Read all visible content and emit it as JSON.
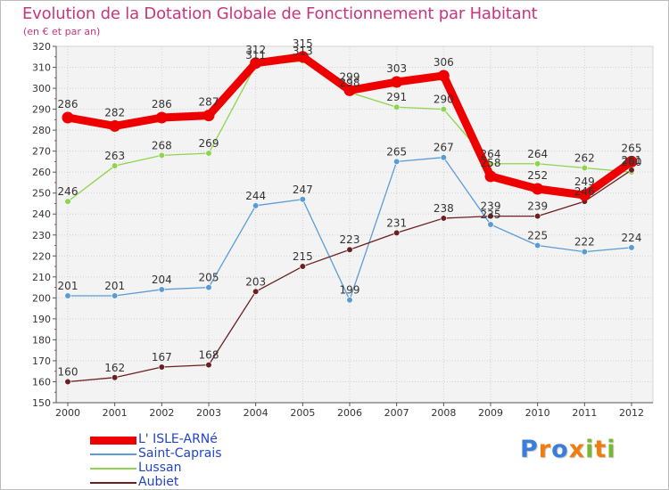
{
  "title": "Evolution de la Dotation Globale de Fonctionnement par Habitant",
  "subtitle": "(en € et par an)",
  "chart_data": {
    "type": "line",
    "title": "Evolution de la Dotation Globale de Fonctionnement par Habitant",
    "subtitle": "(en € et par an)",
    "xlabel": "",
    "ylabel": "",
    "categories": [
      "2000",
      "2001",
      "2002",
      "2003",
      "2004",
      "2005",
      "2006",
      "2007",
      "2008",
      "2009",
      "2010",
      "2011",
      "2012"
    ],
    "ylim": [
      150,
      320
    ],
    "yticks": [
      150,
      160,
      170,
      180,
      190,
      200,
      210,
      220,
      230,
      240,
      250,
      260,
      270,
      280,
      290,
      300,
      310,
      320
    ],
    "grid": true,
    "legend_position": "bottom-left",
    "series": [
      {
        "name": "L' ISLE-ARNé",
        "color": "#ee0000",
        "emphasis": true,
        "values": [
          286,
          282,
          286,
          287,
          312,
          315,
          299,
          303,
          306,
          258,
          252,
          249,
          265
        ]
      },
      {
        "name": "Saint-Caprais",
        "color": "#5b9bd5",
        "emphasis": false,
        "values": [
          201,
          201,
          204,
          205,
          244,
          247,
          199,
          265,
          267,
          235,
          225,
          222,
          224
        ]
      },
      {
        "name": "Lussan",
        "color": "#8ed44e",
        "emphasis": false,
        "values": [
          246,
          263,
          268,
          269,
          311,
          313,
          298,
          291,
          290,
          264,
          264,
          262,
          260
        ]
      },
      {
        "name": "Aubiet",
        "color": "#6b1f1f",
        "emphasis": false,
        "values": [
          160,
          162,
          167,
          168,
          203,
          215,
          223,
          231,
          238,
          239,
          239,
          246,
          261
        ]
      }
    ]
  },
  "logo": {
    "letters": [
      "P",
      "r",
      "o",
      "x",
      "i",
      "t",
      "i"
    ],
    "colors": [
      "#3b7dd8",
      "#f07d10",
      "#3b7dd8",
      "#f07d10",
      "#7ab834",
      "#f07d10",
      "#7ab834"
    ]
  }
}
